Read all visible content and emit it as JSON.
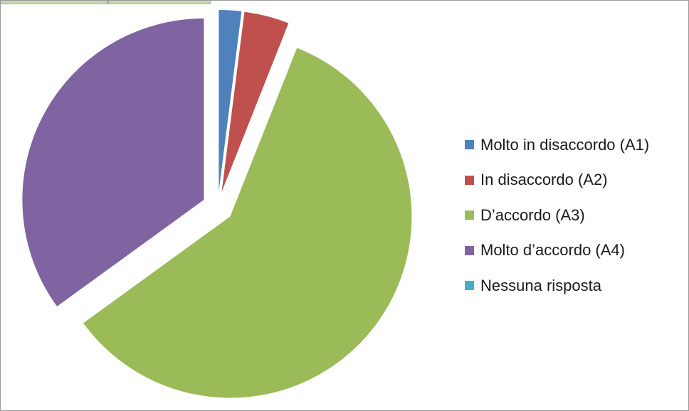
{
  "chart_data": {
    "type": "pie",
    "exploded": true,
    "title": "",
    "legend_position": "right",
    "slices": [
      {
        "label": "Molto in disaccordo (A1)",
        "value": 2,
        "color": "#4f81bd"
      },
      {
        "label": "In disaccordo (A2)",
        "value": 4,
        "color": "#c0504d"
      },
      {
        "label": "D’accordo (A3)",
        "value": 59,
        "color": "#9bbb59"
      },
      {
        "label": "Molto d’accordo (A4)",
        "value": 35,
        "color": "#8064a2"
      },
      {
        "label": "Nessuna risposta",
        "value": 0,
        "color": "#4bacc6"
      }
    ]
  }
}
